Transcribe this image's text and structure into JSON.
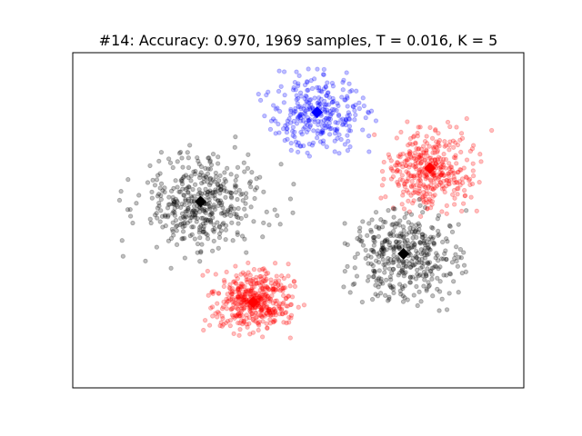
{
  "chart_data": {
    "type": "scatter",
    "title": "#14: Accuracy: 0.970, 1969 samples, T = 0.016, K = 5",
    "xlabel": "",
    "ylabel": "",
    "xticks": [],
    "yticks": [],
    "xlim": [
      -2.0,
      10.0
    ],
    "ylim": [
      -1.0,
      8.0
    ],
    "grid": false,
    "legend": "none",
    "point_alpha": 0.25,
    "clusters": [
      {
        "color": "#0000ff",
        "centroid": [
          4.5,
          6.4
        ],
        "spread": [
          0.58,
          0.5
        ],
        "range_x": [
          2.9,
          6.2
        ],
        "range_y": [
          5.2,
          7.7
        ],
        "count": 300
      },
      {
        "color": "#ff0000",
        "centroid": [
          7.5,
          4.9
        ],
        "spread": [
          0.58,
          0.52
        ],
        "range_x": [
          5.7,
          9.3
        ],
        "range_y": [
          3.6,
          6.3
        ],
        "count": 380
      },
      {
        "color": "#000000",
        "centroid": [
          1.4,
          4.0
        ],
        "spread": [
          0.78,
          0.66
        ],
        "range_x": [
          -1.3,
          4.1
        ],
        "range_y": [
          2.2,
          5.9
        ],
        "count": 430
      },
      {
        "color": "#000000",
        "centroid": [
          6.8,
          2.6
        ],
        "spread": [
          0.7,
          0.62
        ],
        "range_x": [
          5.2,
          8.6
        ],
        "range_y": [
          0.9,
          4.1
        ],
        "count": 400
      },
      {
        "color": "#ff0000",
        "centroid": [
          2.8,
          1.3
        ],
        "spread": [
          0.52,
          0.42
        ],
        "range_x": [
          1.4,
          4.2
        ],
        "range_y": [
          0.3,
          2.6
        ],
        "count": 459
      }
    ]
  }
}
